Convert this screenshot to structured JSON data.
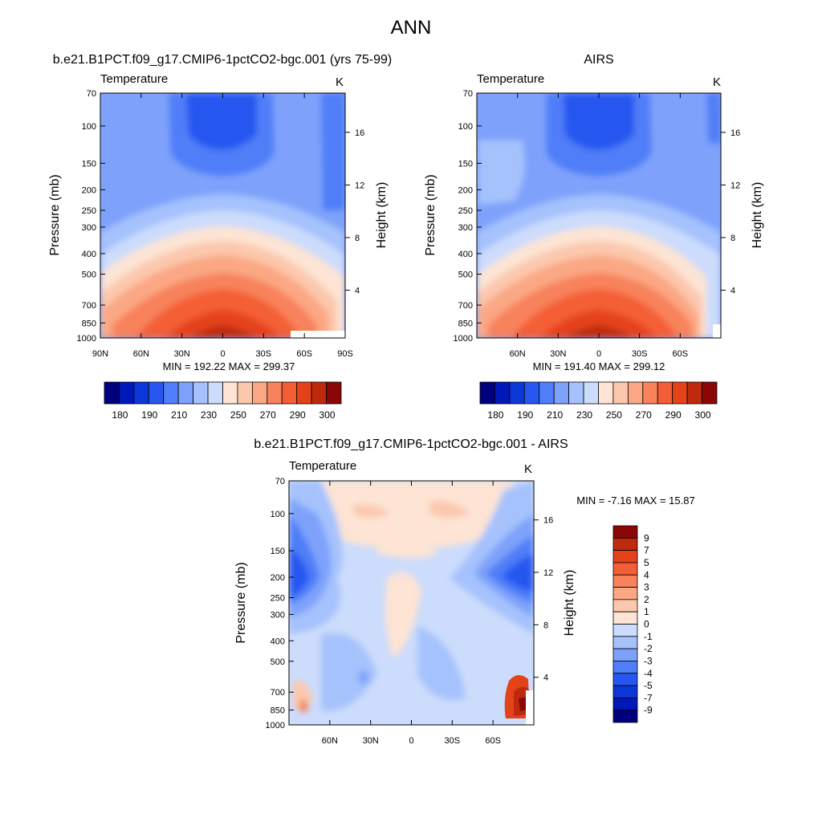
{
  "figure": {
    "title": "ANN"
  },
  "colors": {
    "abs_scale": [
      "#00007f",
      "#0018b7",
      "#0b36d8",
      "#2757f0",
      "#4f7ef8",
      "#7ea2fb",
      "#a6c2fd",
      "#ccdcfc",
      "#fde4d4",
      "#fcc8ad",
      "#fba784",
      "#f8825b",
      "#f45e36",
      "#e4431a",
      "#bf2a0c",
      "#8b0707"
    ],
    "diff_scale": [
      "#00007f",
      "#0018b7",
      "#0b36d8",
      "#2757f0",
      "#4f7ef8",
      "#7ea2fb",
      "#a6c2fd",
      "#ccdcfc",
      "#fde4d4",
      "#fcc8ad",
      "#fba784",
      "#f8825b",
      "#f45e36",
      "#e4431a",
      "#bf2a0c",
      "#8b0707"
    ]
  },
  "chart_data": [
    {
      "type": "heatmap",
      "title": "b.e21.B1PCT.f09_g17.CMIP6-1pctCO2-bgc.001 (yrs 75-99)",
      "variable": "Temperature",
      "units": "K",
      "xlabel": "",
      "ylabel": "Pressure (mb)",
      "y2label": "Height (km)",
      "x_ticks": [
        "90N",
        "60N",
        "30N",
        "0",
        "30S",
        "60S",
        "90S"
      ],
      "y_ticks": [
        70,
        100,
        150,
        200,
        250,
        300,
        400,
        500,
        700,
        850,
        1000
      ],
      "y2_ticks": [
        16,
        12,
        8,
        4
      ],
      "ylim": [
        1000,
        70
      ],
      "yscale": "log",
      "min": 192.22,
      "max": 299.37,
      "stats_label": "MIN = 192.22   MAX = 299.37",
      "colorbar_labels": [
        "180",
        "190",
        "210",
        "230",
        "250",
        "270",
        "290",
        "300"
      ]
    },
    {
      "type": "heatmap",
      "title": "AIRS",
      "variable": "Temperature",
      "units": "K",
      "xlabel": "",
      "ylabel": "Pressure (mb)",
      "y2label": "Height (km)",
      "x_ticks": [
        "60N",
        "30N",
        "0",
        "30S",
        "60S"
      ],
      "y_ticks": [
        70,
        100,
        150,
        200,
        250,
        300,
        400,
        500,
        700,
        850,
        1000
      ],
      "y2_ticks": [
        16,
        12,
        8,
        4
      ],
      "ylim": [
        1000,
        70
      ],
      "yscale": "log",
      "min": 191.4,
      "max": 299.12,
      "stats_label": "MIN = 191.40   MAX = 299.12",
      "colorbar_labels": [
        "180",
        "190",
        "210",
        "230",
        "250",
        "270",
        "290",
        "300"
      ]
    },
    {
      "type": "heatmap",
      "title": "b.e21.B1PCT.f09_g17.CMIP6-1pctCO2-bgc.001 - AIRS",
      "variable": "Temperature",
      "units": "K",
      "xlabel": "",
      "ylabel": "Pressure (mb)",
      "y2label": "Height (km)",
      "x_ticks": [
        "60N",
        "30N",
        "0",
        "30S",
        "60S"
      ],
      "y_ticks": [
        70,
        100,
        150,
        200,
        250,
        300,
        400,
        500,
        700,
        850,
        1000
      ],
      "y2_ticks": [
        16,
        12,
        8,
        4
      ],
      "ylim": [
        1000,
        70
      ],
      "yscale": "log",
      "min": -7.16,
      "max": 15.87,
      "stats_label": "MIN =  -7.16  MAX =  15.87",
      "colorbar_labels": [
        "9",
        "7",
        "5",
        "4",
        "3",
        "2",
        "1",
        "0",
        "-1",
        "-2",
        "-3",
        "-4",
        "-5",
        "-7",
        "-9"
      ]
    }
  ]
}
